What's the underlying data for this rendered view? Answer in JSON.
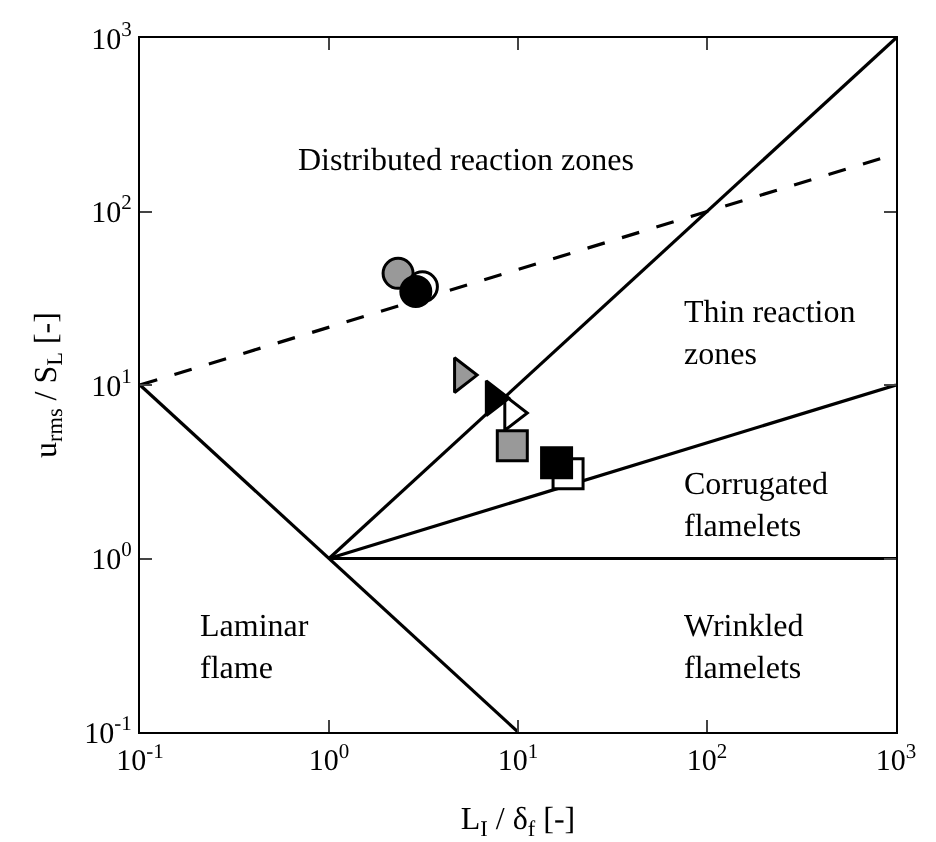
{
  "chart_data": {
    "type": "scatter",
    "xlabel": "L$_{I}$ / δ$_{f}$ [-]",
    "ylabel": "u$_{rms}$ / S$_{L}$ [-]",
    "log": "xy",
    "grid": false,
    "xlim": [
      0.1,
      1000
    ],
    "ylim": [
      0.1,
      1000
    ],
    "xticks": [
      {
        "value": 0.1,
        "label": "10$^{-1}$"
      },
      {
        "value": 1,
        "label": "10$^{0}$"
      },
      {
        "value": 10,
        "label": "10$^{1}$"
      },
      {
        "value": 100,
        "label": "10$^{2}$"
      },
      {
        "value": 1000,
        "label": "10$^{3}$"
      }
    ],
    "yticks": [
      {
        "value": 0.1,
        "label": "10$^{-1}$"
      },
      {
        "value": 1,
        "label": "10$^{0}$"
      },
      {
        "value": 10,
        "label": "10$^{1}$"
      },
      {
        "value": 100,
        "label": "10$^{2}$"
      },
      {
        "value": 1000,
        "label": "10$^{3}$"
      }
    ],
    "series": [
      {
        "type": "line",
        "x": [
          1,
          1000
        ],
        "values": [
          1,
          1000
        ],
        "color": "#000000",
        "line_style": "solid"
      },
      {
        "type": "line",
        "x": [
          0.1,
          1000
        ],
        "values": [
          10,
          215
        ],
        "color": "#000000",
        "line_style": "dashed"
      },
      {
        "type": "line",
        "x": [
          0.1,
          10
        ],
        "values": [
          10,
          0.1
        ],
        "color": "#000000",
        "line_style": "solid"
      },
      {
        "type": "line",
        "x": [
          1,
          1000
        ],
        "values": [
          1,
          10
        ],
        "color": "#000000",
        "line_style": "solid"
      },
      {
        "type": "line",
        "x": [
          1,
          1000
        ],
        "values": [
          1,
          1
        ],
        "color": "#000000",
        "line_style": "solid"
      },
      {
        "marker": "circle",
        "x": [
          2.32
        ],
        "values": [
          44
        ],
        "color": "#999999"
      },
      {
        "marker": "circle",
        "x": [
          3.12
        ],
        "values": [
          36.8
        ],
        "color": "#ffffff"
      },
      {
        "marker": "circle",
        "x": [
          2.88
        ],
        "values": [
          34.6
        ],
        "color": "#000000"
      },
      {
        "marker": "triangle",
        "x": [
          5.06
        ],
        "values": [
          11.4
        ],
        "color": "#999999"
      },
      {
        "marker": "triangle",
        "x": [
          9.33
        ],
        "values": [
          6.9
        ],
        "color": "#ffffff"
      },
      {
        "marker": "triangle",
        "x": [
          7.45
        ],
        "values": [
          8.4
        ],
        "color": "#000000"
      },
      {
        "marker": "square",
        "x": [
          9.33
        ],
        "values": [
          4.46
        ],
        "color": "#999999"
      },
      {
        "marker": "square",
        "x": [
          18.4
        ],
        "values": [
          3.08
        ],
        "color": "#ffffff"
      },
      {
        "marker": "square",
        "x": [
          16.0
        ],
        "values": [
          3.56
        ],
        "color": "#000000"
      }
    ],
    "annotations": [
      "Distributed reaction zones",
      "Thin reaction\nzones",
      "Corrugated\nflamelets",
      "Wrinkled\nflamelets",
      "Laminar\nflame"
    ]
  }
}
